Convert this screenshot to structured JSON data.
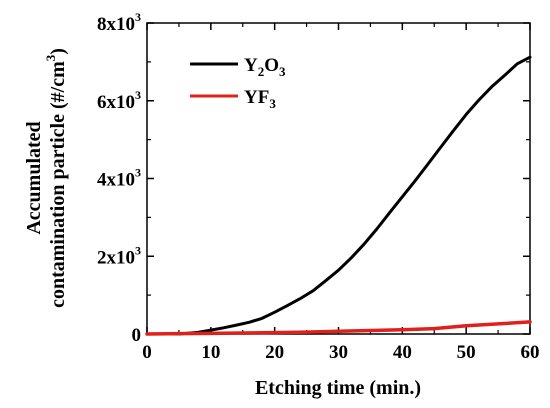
{
  "chart_data": {
    "type": "line",
    "xlabel": "Etching time (min.)",
    "ylabel_line1": "Accumulated",
    "ylabel_line2_main": "contamination particle (#/cm",
    "ylabel_line2_sup": "3",
    "ylabel_line2_end": ")",
    "xlim": [
      0,
      60
    ],
    "ylim": [
      0,
      8000
    ],
    "xticks": [
      0,
      10,
      20,
      30,
      40,
      50,
      60
    ],
    "xtick_labels": [
      "0",
      "10",
      "20",
      "30",
      "40",
      "50",
      "60"
    ],
    "yticks": [
      0,
      2000,
      4000,
      6000,
      8000
    ],
    "ytick_labels": [
      {
        "base": "0",
        "exp": ""
      },
      {
        "base": "2x10",
        "exp": "3"
      },
      {
        "base": "4x10",
        "exp": "3"
      },
      {
        "base": "6x10",
        "exp": "3"
      },
      {
        "base": "8x10",
        "exp": "3"
      }
    ],
    "grid": false,
    "legend_position": "top-left",
    "series": [
      {
        "name": "Y2O3",
        "legend_parts": [
          {
            "t": "Y",
            "sub": false
          },
          {
            "t": "2",
            "sub": true
          },
          {
            "t": "O",
            "sub": false
          },
          {
            "t": "3",
            "sub": true
          }
        ],
        "color": "#000000",
        "x": [
          0,
          5,
          8,
          10,
          12,
          14,
          16,
          18,
          20,
          22,
          24,
          26,
          28,
          30,
          32,
          34,
          36,
          38,
          40,
          42,
          44,
          46,
          48,
          50,
          52,
          54,
          56,
          58,
          60
        ],
        "y": [
          0,
          0,
          40,
          100,
          160,
          230,
          300,
          400,
          560,
          730,
          910,
          1110,
          1370,
          1640,
          1960,
          2310,
          2700,
          3120,
          3530,
          3940,
          4370,
          4800,
          5230,
          5650,
          6020,
          6360,
          6650,
          6950,
          7120
        ]
      },
      {
        "name": "YF3",
        "legend_parts": [
          {
            "t": "YF",
            "sub": false
          },
          {
            "t": "3",
            "sub": true
          }
        ],
        "color": "#e0201b",
        "x": [
          0,
          5,
          10,
          15,
          20,
          25,
          30,
          35,
          40,
          45,
          50,
          55,
          60
        ],
        "y": [
          0,
          10,
          15,
          25,
          35,
          50,
          70,
          90,
          110,
          140,
          210,
          260,
          310
        ]
      }
    ]
  }
}
